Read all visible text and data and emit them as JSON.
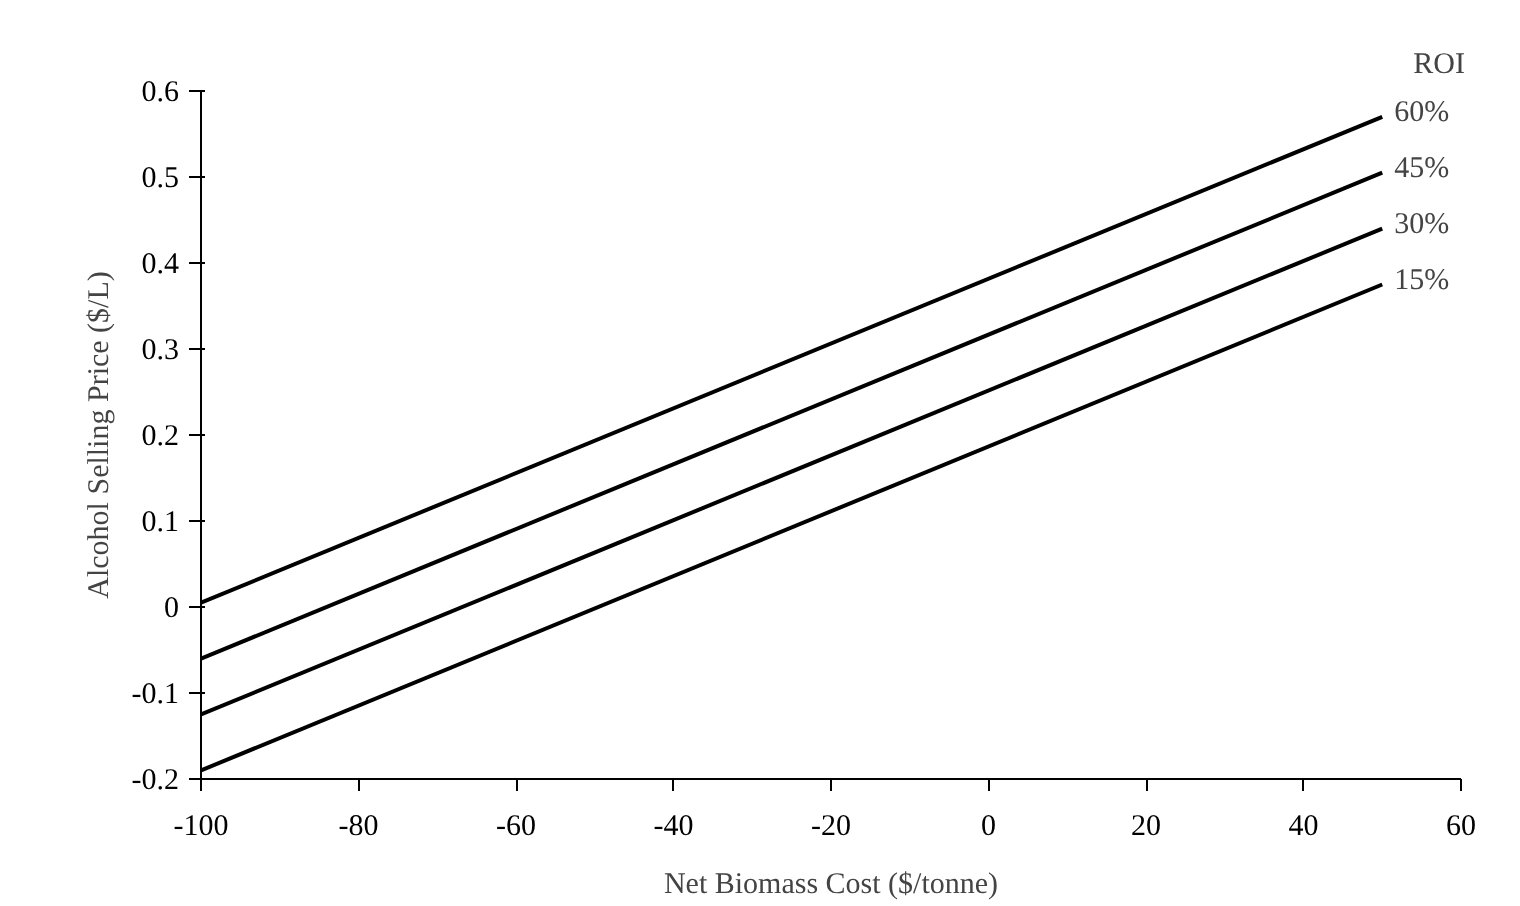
{
  "chart_data": {
    "type": "line",
    "xlabel": "Net Biomass Cost ($/tonne)",
    "ylabel": "Alcohol Selling Price ($/L)",
    "legend_title": "ROI",
    "x": [
      -100,
      50
    ],
    "series": [
      {
        "name": "60%",
        "color": "#000000",
        "values": [
          0.005,
          0.57
        ]
      },
      {
        "name": "45%",
        "color": "#000000",
        "values": [
          -0.06,
          0.505
        ]
      },
      {
        "name": "30%",
        "color": "#000000",
        "values": [
          -0.125,
          0.44
        ]
      },
      {
        "name": "15%",
        "color": "#000000",
        "values": [
          -0.19,
          0.375
        ]
      }
    ],
    "xlim": [
      -100,
      60
    ],
    "xticks": [
      -100,
      -80,
      -60,
      -40,
      -20,
      0,
      20,
      40,
      60
    ],
    "ylim": [
      -0.2,
      0.6
    ],
    "yticks": [
      -0.2,
      -0.1,
      0,
      0.1,
      0.2,
      0.3,
      0.4,
      0.5,
      0.6
    ],
    "grid": false,
    "marker": "none",
    "line_style": "solid"
  }
}
